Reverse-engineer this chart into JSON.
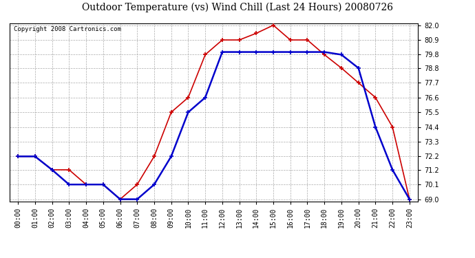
{
  "title": "Outdoor Temperature (vs) Wind Chill (Last 24 Hours) 20080726",
  "copyright": "Copyright 2008 Cartronics.com",
  "hours": [
    "00:00",
    "01:00",
    "02:00",
    "03:00",
    "04:00",
    "05:00",
    "06:00",
    "07:00",
    "08:00",
    "09:00",
    "10:00",
    "11:00",
    "12:00",
    "13:00",
    "14:00",
    "15:00",
    "16:00",
    "17:00",
    "18:00",
    "19:00",
    "20:00",
    "21:00",
    "22:00",
    "23:00"
  ],
  "temp": [
    72.2,
    72.2,
    71.2,
    71.2,
    70.1,
    70.1,
    69.0,
    70.1,
    72.2,
    75.5,
    76.6,
    79.8,
    80.9,
    80.9,
    81.4,
    82.0,
    80.9,
    80.9,
    79.8,
    78.8,
    77.7,
    76.6,
    74.4,
    69.0
  ],
  "windchill": [
    72.2,
    72.2,
    71.2,
    70.1,
    70.1,
    70.1,
    69.0,
    69.0,
    70.1,
    72.2,
    75.5,
    76.6,
    80.0,
    80.0,
    80.0,
    80.0,
    80.0,
    80.0,
    80.0,
    79.8,
    78.8,
    74.4,
    71.2,
    69.0
  ],
  "temp_color": "#cc0000",
  "windchill_color": "#0000cc",
  "ylim_min": 69.0,
  "ylim_max": 82.0,
  "yticks": [
    69.0,
    70.1,
    71.2,
    72.2,
    73.3,
    74.4,
    75.5,
    76.6,
    77.7,
    78.8,
    79.8,
    80.9,
    82.0
  ],
  "bg_color": "#ffffff",
  "plot_bg_color": "#ffffff",
  "grid_color": "#aaaaaa",
  "title_fontsize": 10,
  "tick_fontsize": 7,
  "copyright_fontsize": 6.5
}
